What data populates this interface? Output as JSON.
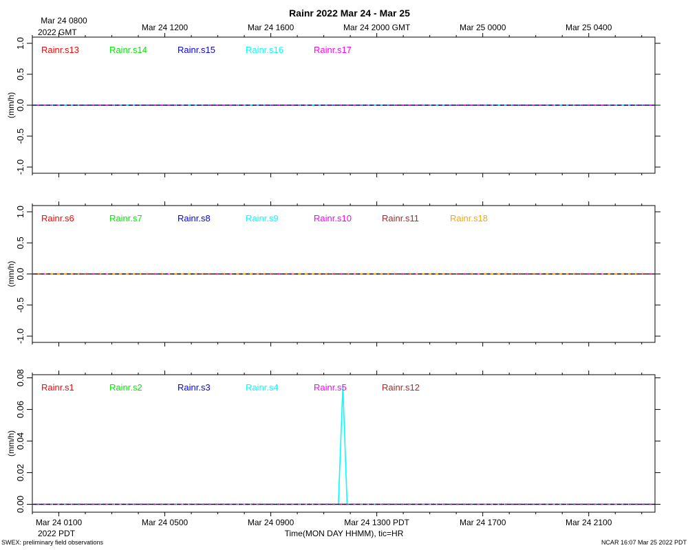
{
  "title": "Rainr 2022 Mar 24 - Mar 25",
  "top_axis_labels": [
    "Mar 24 0800",
    "Mar 24 1200",
    "Mar 24 1600",
    "Mar 24 2000 GMT",
    "Mar 25 0000",
    "Mar 25 0400"
  ],
  "top_axis_year": "2022 GMT",
  "bottom_axis_labels": [
    "Mar 24 0100",
    "Mar 24 0500",
    "Mar 24 0900",
    "Mar 24 1300 PDT",
    "Mar 24 1700",
    "Mar 24 2100"
  ],
  "bottom_axis_year": "2022 PDT",
  "xlabel": "Time(MON DAY HHMM), tic=HR",
  "footer_left": "SWEX: preliminary field observations",
  "footer_right": "NCAR 16:07 Mar 25 2022 PDT",
  "chart_data": [
    {
      "type": "line",
      "ylabel": "(mm/h)",
      "ylim": [
        -1.1,
        1.1
      ],
      "yticks": [
        -1.0,
        -0.5,
        0.0,
        0.5,
        1.0
      ],
      "ytick_labels": [
        "-1.0",
        "-0.5",
        "0.0",
        "0.5",
        "1.0"
      ],
      "x_unit": "hours after Mar 24 0000 PDT",
      "xlim": [
        0,
        23.5
      ],
      "series": [
        {
          "name": "Rainr.s13",
          "color": "#ff0000",
          "x": [
            0,
            23.5
          ],
          "values": [
            0,
            0
          ]
        },
        {
          "name": "Rainr.s14",
          "color": "#00ee00",
          "x": [
            0,
            23.5
          ],
          "values": [
            0,
            0
          ]
        },
        {
          "name": "Rainr.s15",
          "color": "#0000ff",
          "x": [
            0,
            23.5
          ],
          "values": [
            0,
            0
          ]
        },
        {
          "name": "Rainr.s16",
          "color": "#00ffff",
          "x": [
            0,
            23.5
          ],
          "values": [
            0,
            0
          ]
        },
        {
          "name": "Rainr.s17",
          "color": "#ff00ff",
          "x": [
            0,
            23.5
          ],
          "values": [
            0,
            0
          ]
        }
      ]
    },
    {
      "type": "line",
      "ylabel": "(mm/h)",
      "ylim": [
        -1.1,
        1.1
      ],
      "yticks": [
        -1.0,
        -0.5,
        0.0,
        0.5,
        1.0
      ],
      "ytick_labels": [
        "-1.0",
        "-0.5",
        "0.0",
        "0.5",
        "1.0"
      ],
      "x_unit": "hours after Mar 24 0000 PDT",
      "xlim": [
        0,
        23.5
      ],
      "series": [
        {
          "name": "Rainr.s6",
          "color": "#ff0000",
          "x": [
            0,
            23.5
          ],
          "values": [
            0,
            0
          ]
        },
        {
          "name": "Rainr.s7",
          "color": "#00ee00",
          "x": [
            0,
            23.5
          ],
          "values": [
            0,
            0
          ]
        },
        {
          "name": "Rainr.s8",
          "color": "#0000ff",
          "x": [
            0,
            23.5
          ],
          "values": [
            0,
            0
          ]
        },
        {
          "name": "Rainr.s9",
          "color": "#00ffff",
          "x": [
            0,
            23.5
          ],
          "values": [
            0,
            0
          ]
        },
        {
          "name": "Rainr.s10",
          "color": "#ff00ff",
          "x": [
            0,
            23.5
          ],
          "values": [
            0,
            0
          ]
        },
        {
          "name": "Rainr.s11",
          "color": "#a52a2a",
          "x": [
            0,
            23.5
          ],
          "values": [
            0,
            0
          ]
        },
        {
          "name": "Rainr.s18",
          "color": "#ffa500",
          "x": [
            0,
            23.5
          ],
          "values": [
            0,
            0
          ]
        }
      ]
    },
    {
      "type": "line",
      "ylabel": "(mm/h)",
      "ylim": [
        -0.005,
        0.082
      ],
      "yticks": [
        0.0,
        0.02,
        0.04,
        0.06,
        0.08
      ],
      "ytick_labels": [
        "0.00",
        "0.02",
        "0.04",
        "0.06",
        "0.08"
      ],
      "x_unit": "hours after Mar 24 0000 PDT",
      "xlim": [
        0,
        23.5
      ],
      "series": [
        {
          "name": "Rainr.s1",
          "color": "#ff0000",
          "x": [
            0,
            23.5
          ],
          "values": [
            0,
            0
          ]
        },
        {
          "name": "Rainr.s2",
          "color": "#00ee00",
          "x": [
            0,
            23.5
          ],
          "values": [
            0,
            0
          ]
        },
        {
          "name": "Rainr.s3",
          "color": "#0000ff",
          "x": [
            0,
            23.5
          ],
          "values": [
            0,
            0
          ]
        },
        {
          "name": "Rainr.s4",
          "color": "#00ffff",
          "x": [
            0,
            11.55,
            11.72,
            11.88,
            23.5
          ],
          "values": [
            0,
            0,
            0.075,
            0,
            0
          ]
        },
        {
          "name": "Rainr.s5",
          "color": "#ff00ff",
          "x": [
            0,
            23.5
          ],
          "values": [
            0,
            0
          ]
        },
        {
          "name": "Rainr.s12",
          "color": "#a52a2a",
          "x": [
            0,
            23.5
          ],
          "values": [
            0,
            0
          ]
        }
      ]
    }
  ]
}
